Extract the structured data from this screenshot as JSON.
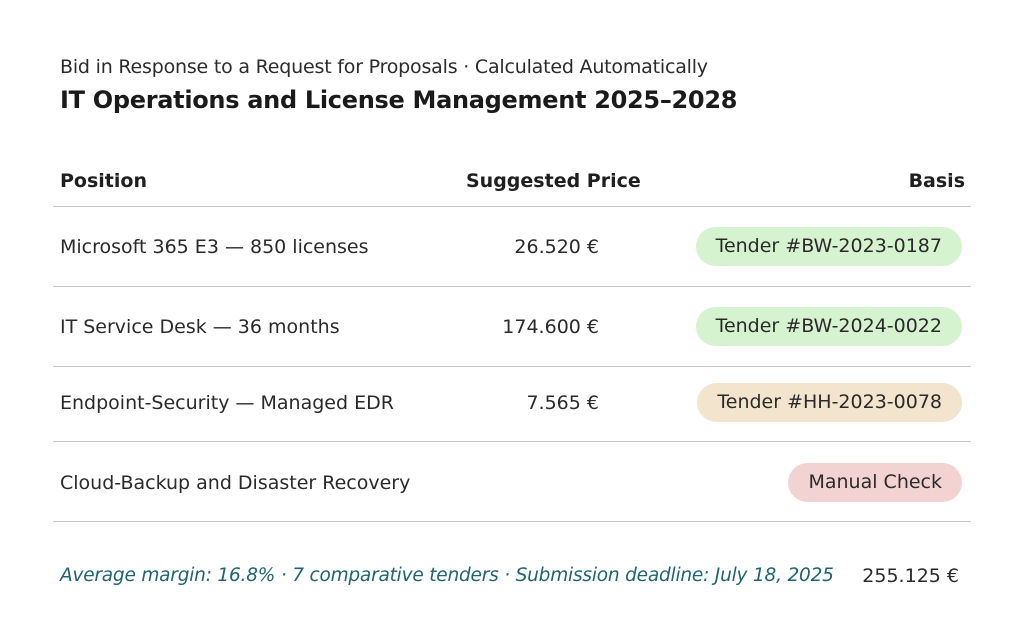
{
  "header": {
    "subtitle": "Bid in Response to a Request for Proposals · Calculated Automatically",
    "title": "IT Operations and License Management 2025–2028"
  },
  "table": {
    "columns": {
      "position": "Position",
      "price": "Suggested Price",
      "basis": "Basis"
    },
    "rows": [
      {
        "position": "Microsoft 365 E3 — 850 licenses",
        "price": "26.520 €",
        "basis": "Tender #BW-2023-0187",
        "basis_status": "green"
      },
      {
        "position": "IT Service Desk — 36 months",
        "price": "174.600 €",
        "basis": "Tender #BW-2024-0022",
        "basis_status": "green"
      },
      {
        "position": "Endpoint-Security — Managed EDR",
        "price": "7.565 €",
        "basis": "Tender #HH-2023-0078",
        "basis_status": "sand"
      },
      {
        "position": "Cloud-Backup and Disaster Recovery",
        "price": "",
        "basis": "Manual Check",
        "basis_status": "red"
      }
    ]
  },
  "footer": {
    "note": "Average margin: 16.8% · 7 comparative tenders · Submission deadline: July 18, 2025",
    "total": "255.125 €"
  },
  "colors": {
    "pill_green": "#d6f3cf",
    "pill_sand": "#f3e4cd",
    "pill_red": "#f3d3d1",
    "footer_note": "#1f6472"
  }
}
